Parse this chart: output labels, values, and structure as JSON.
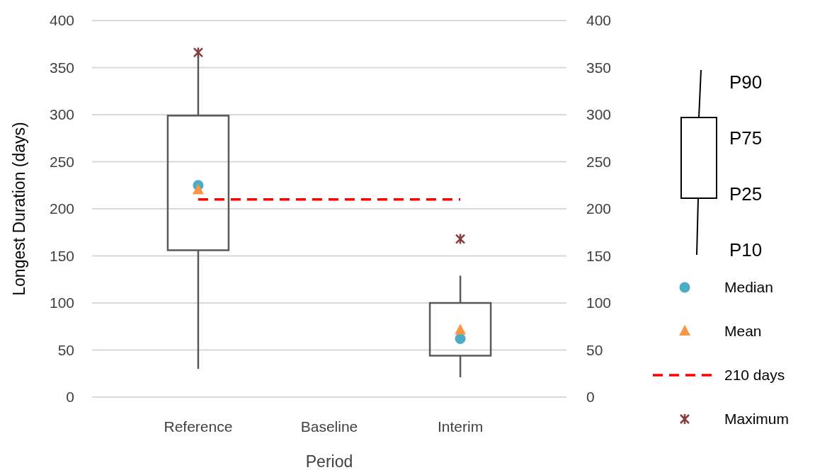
{
  "chart_data": {
    "type": "box",
    "xlabel": "Period",
    "ylabel": "Longest Duration (days)",
    "categories": [
      "Reference",
      "Baseline",
      "Interim"
    ],
    "ylim": [
      0,
      400
    ],
    "yticks": [
      0,
      50,
      100,
      150,
      200,
      250,
      300,
      350,
      400
    ],
    "y2lim": [
      0,
      400
    ],
    "y2ticks": [
      0,
      50,
      100,
      150,
      200,
      250,
      300,
      350,
      400
    ],
    "grid": "y",
    "legend": "right",
    "series": [
      {
        "color": "#595959",
        "boxes": [
          {
            "low": 30,
            "q1": 156,
            "q3": 299,
            "high": 362
          },
          null,
          {
            "low": 21,
            "q1": 44,
            "q3": 100,
            "high": 129
          }
        ]
      },
      {
        "type": "scatter",
        "name": "Median",
        "color": "#4bacc6",
        "marker": "circle",
        "values": [
          225,
          null,
          62
        ]
      },
      {
        "type": "scatter",
        "name": "Mean",
        "color": "#f79646",
        "marker": "triangle",
        "values": [
          220,
          null,
          71
        ]
      },
      {
        "type": "line",
        "name": "210 days",
        "color": "#ff0000",
        "line_style": "dashed",
        "marker": "none",
        "values": [
          210,
          210,
          210
        ]
      },
      {
        "type": "scatter",
        "name": "Maximum",
        "color": "#843c3c",
        "marker": "cross",
        "values": [
          366,
          null,
          168
        ]
      }
    ],
    "annotations": [
      "P90",
      "P75",
      "P25",
      "P10"
    ]
  }
}
